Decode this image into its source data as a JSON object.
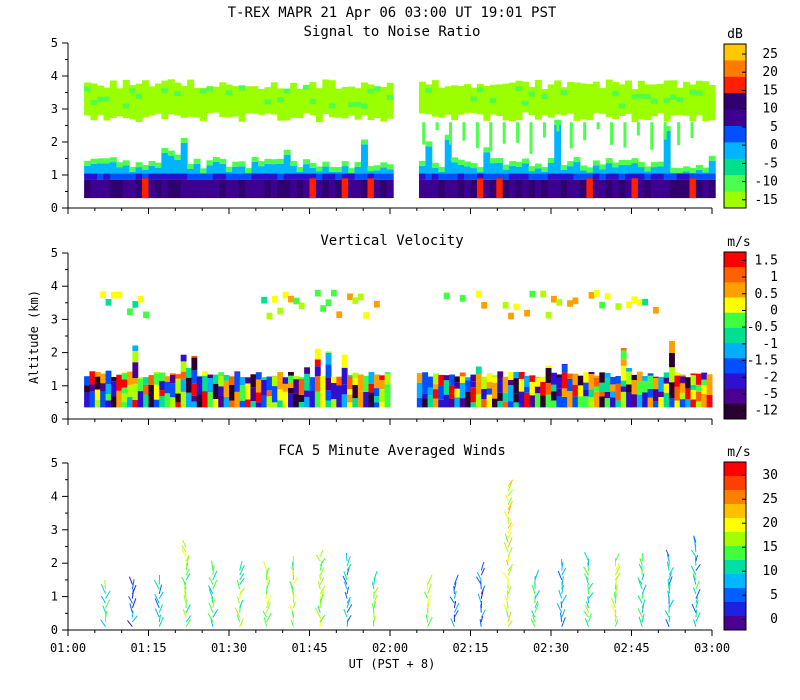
{
  "title": "T-REX  MAPR 21 Apr 06  03:00 UT  19:01  PST",
  "xlabel": "UT  (PST + 8)",
  "ylabel": "Altitude (km)",
  "x_ticks": [
    "01:00",
    "01:15",
    "01:30",
    "01:45",
    "02:00",
    "02:15",
    "02:30",
    "02:45",
    "03:00"
  ],
  "y_ticks": [
    "0",
    "1",
    "2",
    "3",
    "4",
    "5"
  ],
  "chart_data": [
    {
      "type": "heatmap",
      "title": "Signal to Noise Ratio",
      "units": "dB",
      "xlim_minutes": [
        60,
        180
      ],
      "ylim_km": [
        0,
        5
      ],
      "colorbar_ticks": [
        "25",
        "20",
        "15",
        "10",
        "5",
        "0",
        "-5",
        "-10",
        "-15"
      ],
      "colorbar_range": [
        -17,
        28
      ],
      "data_gap_minutes": [
        120,
        125
      ],
      "layers": [
        {
          "name": "upper layer",
          "alt_km": [
            2.5,
            3.9
          ],
          "level_db": -13
        },
        {
          "name": "boundary layer",
          "alt_km": [
            0.3,
            1.5
          ],
          "level_db": 5
        },
        {
          "name": "surface",
          "alt_km": [
            0.3,
            0.9
          ],
          "level_db": 10
        }
      ]
    },
    {
      "type": "heatmap",
      "title": "Vertical Velocity",
      "units": "m/s",
      "xlim_minutes": [
        60,
        180
      ],
      "ylim_km": [
        0,
        5
      ],
      "colorbar_ticks": [
        "1.5",
        "1",
        "0.5",
        "0",
        "-0.5",
        "-1",
        "-1.5",
        "-2",
        "-5",
        "-12"
      ],
      "data_gap_minutes": [
        120,
        125
      ],
      "layers": [
        {
          "name": "upper layer",
          "alt_km": [
            2.7,
            3.8
          ],
          "velocity_ms": [
            -1,
            1.5
          ]
        },
        {
          "name": "boundary layer",
          "alt_km": [
            0.3,
            1.4
          ],
          "velocity_ms": [
            -12,
            1.5
          ]
        }
      ]
    },
    {
      "type": "scatter",
      "title": "FCA 5 Minute Averaged Winds",
      "units": "m/s",
      "xlim_minutes": [
        60,
        180
      ],
      "ylim_km": [
        0,
        5
      ],
      "colorbar_ticks": [
        "30",
        "25",
        "20",
        "15",
        "10",
        "5",
        "0"
      ],
      "colorbar_range": [
        0,
        32
      ],
      "profile_times_minutes": [
        67,
        72,
        77,
        82,
        87,
        92,
        97,
        102,
        107,
        112,
        117,
        127,
        132,
        137,
        142,
        147,
        152,
        157,
        162,
        167,
        172,
        177
      ],
      "profile_top_km": [
        1.3,
        1.4,
        1.4,
        2.5,
        1.9,
        1.8,
        1.8,
        2,
        2.3,
        2.1,
        1.6,
        1.4,
        1.5,
        1.8,
        4.4,
        1.6,
        2,
        2.2,
        2.1,
        2.1,
        2.3,
        2.7
      ],
      "profile_speed_ms": [
        12,
        6,
        8,
        14,
        12,
        14,
        16,
        15,
        14,
        8,
        13,
        15,
        6,
        4,
        18,
        10,
        8,
        12,
        16,
        11,
        8,
        9
      ]
    }
  ]
}
